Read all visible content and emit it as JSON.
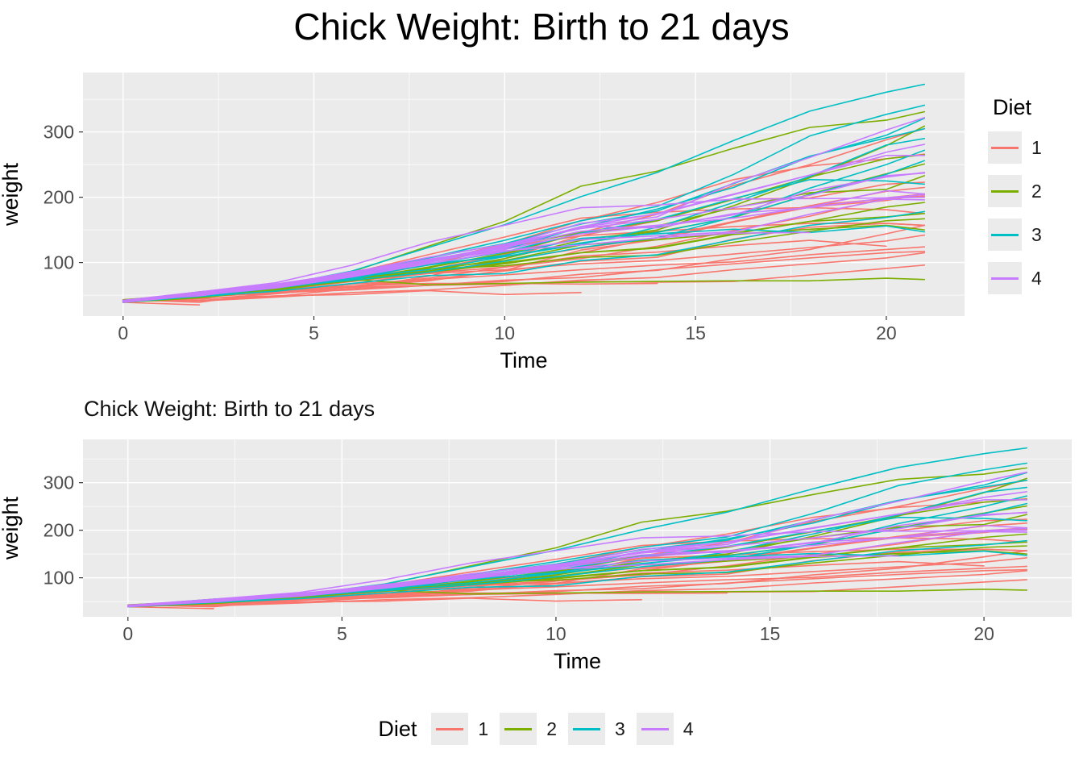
{
  "palette": {
    "1": "#F8766D",
    "2": "#7CAE00",
    "3": "#00BFC4",
    "4": "#C77CFF"
  },
  "panel_bg": "#EBEBEB",
  "grid_color": "#FFFFFF",
  "axis_text_color": "#4D4D4D",
  "tick_color": "#333333",
  "chart_data": {
    "type": "line",
    "xlabel": "Time",
    "ylabel": "weight",
    "x_ticks": [
      0,
      5,
      10,
      15,
      20
    ],
    "y_ticks": [
      100,
      200,
      300
    ],
    "x_minor": [
      2.5,
      7.5,
      12.5,
      17.5
    ],
    "y_minor": [
      50,
      150,
      250,
      350
    ],
    "xlim": [
      -1.05,
      22.05
    ],
    "ylim": [
      18,
      391
    ],
    "legend_title": "Diet",
    "legend_entries": [
      "1",
      "2",
      "3",
      "4"
    ],
    "charts": [
      {
        "title": "Chick Weight: Birth to 21 days",
        "title_align": "center",
        "legend_position": "right"
      },
      {
        "title": "Chick Weight: Birth to 21 days",
        "title_align": "left",
        "legend_position": "bottom"
      }
    ],
    "x": [
      0,
      2,
      4,
      6,
      8,
      10,
      12,
      14,
      16,
      18,
      20,
      21
    ],
    "series": [
      {
        "chick": "1",
        "diet": "1",
        "weights": [
          42,
          51,
          59,
          64,
          76,
          93,
          106,
          125,
          149,
          171,
          199,
          205
        ]
      },
      {
        "chick": "2",
        "diet": "1",
        "weights": [
          40,
          49,
          58,
          72,
          84,
          103,
          122,
          138,
          162,
          187,
          209,
          215
        ]
      },
      {
        "chick": "3",
        "diet": "1",
        "weights": [
          43,
          39,
          55,
          67,
          84,
          99,
          115,
          138,
          163,
          187,
          198,
          202
        ]
      },
      {
        "chick": "4",
        "diet": "1",
        "weights": [
          42,
          49,
          56,
          67,
          74,
          87,
          102,
          108,
          136,
          154,
          160,
          157
        ]
      },
      {
        "chick": "5",
        "diet": "1",
        "weights": [
          41,
          42,
          48,
          60,
          79,
          106,
          141,
          164,
          197,
          199,
          220,
          223
        ]
      },
      {
        "chick": "6",
        "diet": "1",
        "weights": [
          41,
          49,
          59,
          74,
          97,
          124,
          141,
          148,
          155,
          160,
          160,
          157
        ]
      },
      {
        "chick": "7",
        "diet": "1",
        "weights": [
          41,
          49,
          57,
          71,
          89,
          112,
          146,
          174,
          218,
          250,
          288,
          305
        ]
      },
      {
        "chick": "8",
        "diet": "1",
        "weights": [
          42,
          50,
          61,
          71,
          84,
          93,
          110,
          116,
          126,
          134,
          125
        ]
      },
      {
        "chick": "9",
        "diet": "1",
        "weights": [
          43,
          41,
          47,
          54,
          58,
          65,
          73,
          77,
          89,
          98,
          107,
          115
        ]
      },
      {
        "chick": "10",
        "diet": "1",
        "weights": [
          41,
          44,
          52,
          63,
          74,
          81,
          89,
          96,
          101,
          112,
          120,
          124
        ]
      },
      {
        "chick": "11",
        "diet": "1",
        "weights": [
          43,
          51,
          63,
          84,
          112,
          139,
          168,
          177,
          182,
          184,
          181,
          175
        ]
      },
      {
        "chick": "12",
        "diet": "1",
        "weights": [
          41,
          49,
          56,
          62,
          72,
          88,
          119,
          135,
          162,
          185,
          195,
          205
        ]
      },
      {
        "chick": "13",
        "diet": "1",
        "weights": [
          41,
          48,
          53,
          60,
          65,
          67,
          71,
          70,
          71,
          81,
          91,
          96
        ]
      },
      {
        "chick": "14",
        "diet": "1",
        "weights": [
          41,
          49,
          62,
          79,
          101,
          128,
          164,
          192,
          227,
          248,
          259,
          266
        ]
      },
      {
        "chick": "15",
        "diet": "1",
        "weights": [
          41,
          49,
          56,
          64,
          68,
          68,
          67,
          68
        ]
      },
      {
        "chick": "16",
        "diet": "1",
        "weights": [
          41,
          45,
          49,
          51,
          57,
          51,
          54
        ]
      },
      {
        "chick": "17",
        "diet": "1",
        "weights": [
          42,
          51,
          61,
          72,
          83,
          89,
          98,
          103,
          113,
          123,
          133,
          142
        ]
      },
      {
        "chick": "18",
        "diet": "1",
        "weights": [
          39,
          35
        ]
      },
      {
        "chick": "19",
        "diet": "1",
        "weights": [
          43,
          48,
          55,
          62,
          65,
          71,
          82,
          88,
          106,
          120,
          144,
          157
        ]
      },
      {
        "chick": "20",
        "diet": "1",
        "weights": [
          41,
          47,
          54,
          58,
          65,
          73,
          77,
          89,
          98,
          107,
          115,
          117
        ]
      },
      {
        "chick": "21",
        "diet": "2",
        "weights": [
          40,
          50,
          62,
          86,
          125,
          163,
          217,
          240,
          275,
          307,
          318,
          331
        ]
      },
      {
        "chick": "22",
        "diet": "2",
        "weights": [
          41,
          55,
          64,
          77,
          90,
          95,
          108,
          111,
          131,
          148,
          164,
          167
        ]
      },
      {
        "chick": "23",
        "diet": "2",
        "weights": [
          43,
          52,
          61,
          73,
          90,
          103,
          127,
          135,
          145,
          163,
          170,
          175
        ]
      },
      {
        "chick": "24",
        "diet": "2",
        "weights": [
          42,
          52,
          58,
          74,
          66,
          68,
          70,
          71,
          72,
          72,
          76,
          74
        ]
      },
      {
        "chick": "25",
        "diet": "2",
        "weights": [
          40,
          49,
          62,
          78,
          102,
          124,
          146,
          164,
          197,
          231,
          259,
          265
        ]
      },
      {
        "chick": "26",
        "diet": "2",
        "weights": [
          42,
          48,
          57,
          74,
          93,
          114,
          136,
          147,
          169,
          205,
          236,
          251
        ]
      },
      {
        "chick": "27",
        "diet": "2",
        "weights": [
          39,
          46,
          58,
          73,
          87,
          100,
          115,
          123,
          144,
          163,
          185,
          192
        ]
      },
      {
        "chick": "28",
        "diet": "2",
        "weights": [
          39,
          46,
          58,
          73,
          92,
          114,
          145,
          156,
          184,
          207,
          212,
          233
        ]
      },
      {
        "chick": "29",
        "diet": "2",
        "weights": [
          39,
          48,
          59,
          74,
          87,
          106,
          134,
          150,
          187,
          230,
          279,
          309
        ]
      },
      {
        "chick": "30",
        "diet": "2",
        "weights": [
          42,
          48,
          59,
          72,
          85,
          98,
          115,
          122,
          143,
          151,
          157,
          150
        ]
      },
      {
        "chick": "31",
        "diet": "3",
        "weights": [
          42,
          53,
          62,
          73,
          85,
          102,
          123,
          138,
          170,
          204,
          235,
          256
        ]
      },
      {
        "chick": "32",
        "diet": "3",
        "weights": [
          41,
          49,
          65,
          82,
          107,
          129,
          159,
          179,
          221,
          263,
          291,
          305
        ]
      },
      {
        "chick": "33",
        "diet": "3",
        "weights": [
          39,
          50,
          63,
          77,
          96,
          111,
          137,
          144,
          151,
          146,
          156,
          147
        ]
      },
      {
        "chick": "34",
        "diet": "3",
        "weights": [
          41,
          49,
          63,
          85,
          107,
          134,
          164,
          186,
          235,
          294,
          327,
          341
        ]
      },
      {
        "chick": "35",
        "diet": "3",
        "weights": [
          41,
          53,
          64,
          87,
          123,
          158,
          201,
          238,
          287,
          332,
          361,
          373
        ]
      },
      {
        "chick": "36",
        "diet": "3",
        "weights": [
          39,
          48,
          61,
          76,
          98,
          116,
          145,
          166,
          198,
          227,
          225,
          220
        ]
      },
      {
        "chick": "37",
        "diet": "3",
        "weights": [
          41,
          48,
          56,
          68,
          80,
          83,
          103,
          112,
          135,
          157,
          169,
          178
        ]
      },
      {
        "chick": "38",
        "diet": "3",
        "weights": [
          41,
          49,
          61,
          74,
          98,
          109,
          128,
          154,
          192,
          232,
          280,
          290
        ]
      },
      {
        "chick": "39",
        "diet": "3",
        "weights": [
          42,
          50,
          61,
          78,
          89,
          109,
          130,
          146,
          170,
          214,
          250,
          272
        ]
      },
      {
        "chick": "40",
        "diet": "3",
        "weights": [
          41,
          55,
          66,
          79,
          101,
          120,
          154,
          182,
          215,
          262,
          295,
          321
        ]
      },
      {
        "chick": "41",
        "diet": "4",
        "weights": [
          42,
          51,
          66,
          85,
          103,
          124,
          155,
          153,
          175,
          184,
          199,
          204
        ]
      },
      {
        "chick": "42",
        "diet": "4",
        "weights": [
          42,
          49,
          63,
          84,
          103,
          126,
          160,
          174,
          204,
          234,
          269,
          281
        ]
      },
      {
        "chick": "43",
        "diet": "4",
        "weights": [
          42,
          55,
          69,
          96,
          131,
          157,
          184,
          188,
          197,
          198,
          199,
          200
        ]
      },
      {
        "chick": "44",
        "diet": "4",
        "weights": [
          42,
          51,
          65,
          86,
          103,
          118,
          127,
          138,
          145,
          146
        ]
      },
      {
        "chick": "45",
        "diet": "4",
        "weights": [
          41,
          50,
          61,
          78,
          98,
          117,
          135,
          141,
          147,
          174,
          197,
          196
        ]
      },
      {
        "chick": "46",
        "diet": "4",
        "weights": [
          40,
          52,
          62,
          82,
          101,
          120,
          144,
          156,
          173,
          210,
          231,
          238
        ]
      },
      {
        "chick": "47",
        "diet": "4",
        "weights": [
          41,
          53,
          66,
          79,
          100,
          123,
          148,
          157,
          168,
          185,
          210,
          205
        ]
      },
      {
        "chick": "48",
        "diet": "4",
        "weights": [
          39,
          50,
          62,
          80,
          104,
          125,
          154,
          170,
          222,
          261,
          303,
          322
        ]
      },
      {
        "chick": "49",
        "diet": "4",
        "weights": [
          40,
          53,
          64,
          85,
          108,
          128,
          152,
          166,
          184,
          203,
          233,
          237
        ]
      },
      {
        "chick": "50",
        "diet": "4",
        "weights": [
          41,
          54,
          67,
          84,
          105,
          122,
          155,
          175,
          205,
          234,
          264,
          264
        ]
      }
    ]
  }
}
